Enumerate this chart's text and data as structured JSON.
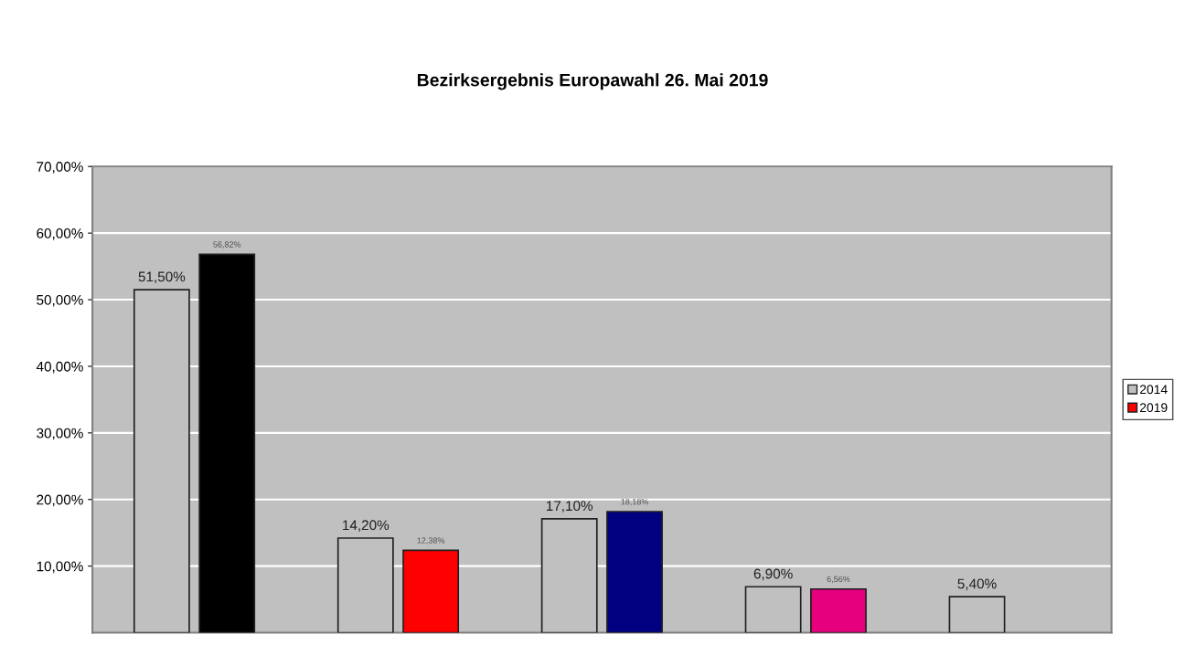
{
  "chart_data": {
    "type": "bar",
    "title": "Bezirksergebnis Europawahl 26. Mai 2019",
    "categories": [
      null,
      null,
      null,
      null,
      null
    ],
    "series": [
      {
        "name": "2014",
        "color": "#c0c0c0",
        "values": [
          51.5,
          14.2,
          17.1,
          6.9,
          5.4
        ],
        "value_labels": [
          "51,50%",
          "14,20%",
          "17,10%",
          "6,90%",
          "5,40%"
        ]
      },
      {
        "name": "2019",
        "color": "#ff0000",
        "colors": [
          "#000000",
          "#ff0000",
          "#000080",
          "#e6007e",
          "#008000"
        ],
        "values": [
          56.82,
          12.38,
          18.18,
          6.56,
          null
        ],
        "value_labels": [
          "56,82%",
          "12,38%",
          "18,18%",
          "6,56%",
          null
        ]
      }
    ],
    "ylim": [
      0,
      70
    ],
    "yticks": [
      {
        "value": 10,
        "label": "10,00%"
      },
      {
        "value": 20,
        "label": "20,00%"
      },
      {
        "value": 30,
        "label": "30,00%"
      },
      {
        "value": 40,
        "label": "40,00%"
      },
      {
        "value": 50,
        "label": "50,00%"
      },
      {
        "value": 60,
        "label": "60,00%"
      },
      {
        "value": 70,
        "label": "70,00%"
      }
    ],
    "grid": "y",
    "legend": "right"
  }
}
